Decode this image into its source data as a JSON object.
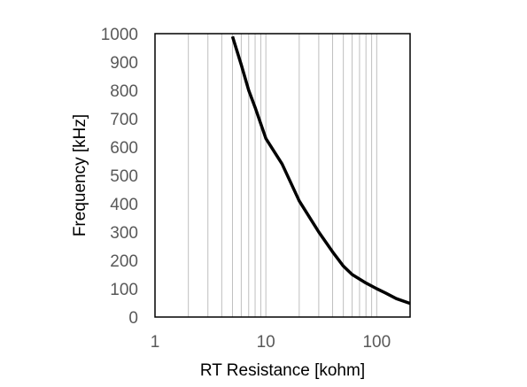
{
  "chart_data": {
    "type": "line",
    "title": "",
    "xlabel": "RT Resistance [kohm]",
    "ylabel": "Frequency [kHz]",
    "x_scale": "log",
    "xlim": [
      1,
      200
    ],
    "ylim": [
      0,
      1000
    ],
    "x_ticks": [
      1,
      10,
      100
    ],
    "x_tick_labels": [
      "1",
      "10",
      "100"
    ],
    "y_ticks": [
      0,
      100,
      200,
      300,
      400,
      500,
      600,
      700,
      800,
      900,
      1000
    ],
    "y_tick_labels": [
      "0",
      "100",
      "200",
      "300",
      "400",
      "500",
      "600",
      "700",
      "800",
      "900",
      "1000"
    ],
    "grid": "vertical minor and major on x, none on y",
    "legend": "none",
    "series": [
      {
        "color": "#000000",
        "x": [
          5,
          6,
          7,
          8,
          10,
          14,
          20,
          30,
          40,
          50,
          60,
          80,
          100,
          120,
          150,
          200
        ],
        "y": [
          990,
          890,
          800,
          740,
          630,
          540,
          410,
          300,
          230,
          180,
          150,
          120,
          100,
          85,
          65,
          48
        ]
      }
    ]
  }
}
